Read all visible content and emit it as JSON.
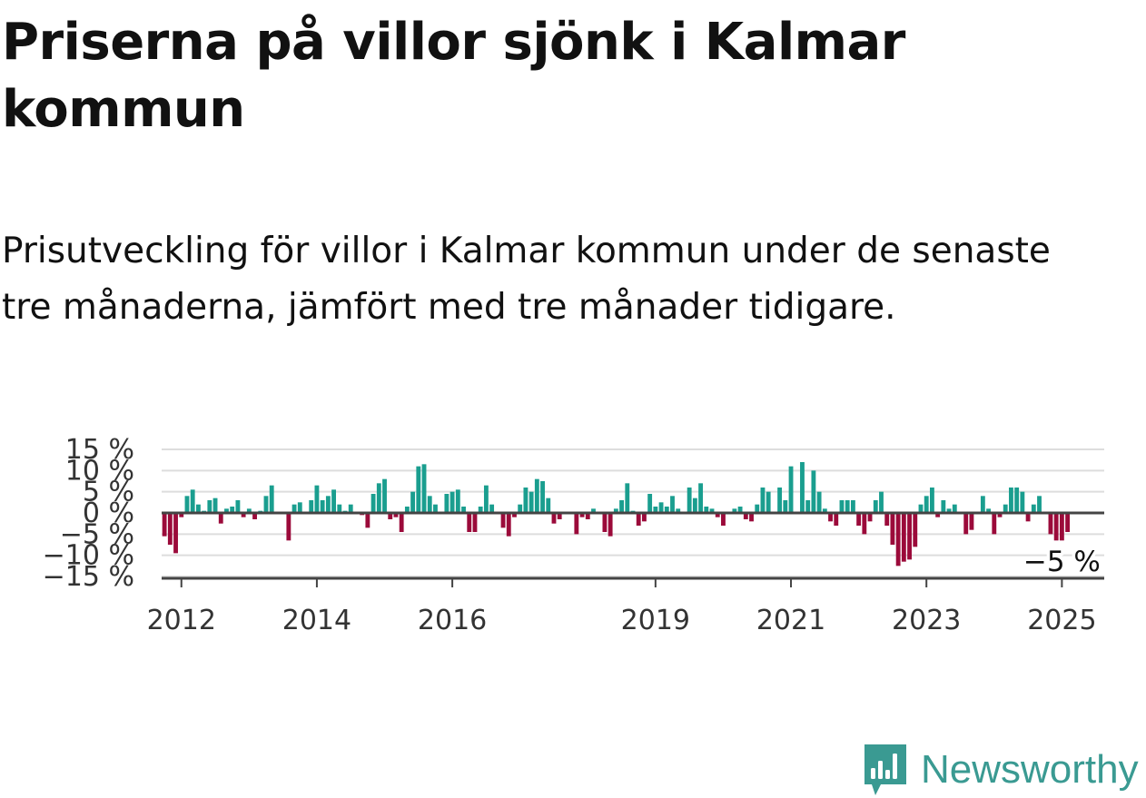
{
  "title": "Priserna på villor sjönk i Kalmar kommun",
  "subtitle": "Prisutveckling för villor i Kalmar kommun under de senaste tre månaderna, jämfört med tre månader tidigare.",
  "brand": {
    "name": "Newsworthy",
    "icon": "newsworthy-logo-icon",
    "color": "#3a9a92"
  },
  "colors": {
    "positive": "#1a9e8f",
    "negative": "#9b0a3a",
    "zero_line": "#444444",
    "grid": "#dddddd"
  },
  "chart_data": {
    "type": "bar",
    "title": "",
    "xlabel": "",
    "ylabel": "",
    "ylim": [
      -15,
      15
    ],
    "y_ticks": [
      {
        "value": 15,
        "label": "15 %"
      },
      {
        "value": 10,
        "label": "10 %"
      },
      {
        "value": 5,
        "label": "5 %"
      },
      {
        "value": 0,
        "label": "0 %"
      },
      {
        "value": -5,
        "label": "−5 %"
      },
      {
        "value": -10,
        "label": "−10 %"
      },
      {
        "value": -15,
        "label": "−15 %"
      }
    ],
    "x_ticks": [
      "2012",
      "2014",
      "2016",
      "2019",
      "2021",
      "2023",
      "2025"
    ],
    "grid": true,
    "x_start": "2011-10",
    "x_end": "2025-08",
    "annotation": {
      "label": "−5 %",
      "value": -5
    },
    "values": [
      -5.5,
      -7.5,
      -9.5,
      -1,
      4,
      5.5,
      2,
      0.5,
      3,
      3.5,
      -2.5,
      1,
      1.5,
      3,
      -1,
      1,
      -1.5,
      0.5,
      4,
      6.5,
      0,
      0,
      -6.5,
      2,
      2.5,
      0,
      3,
      6.5,
      3,
      4,
      5.5,
      2,
      0.5,
      2,
      0,
      -0.5,
      -3.5,
      4.5,
      7,
      8,
      -1.5,
      -1,
      -4.5,
      1.5,
      5,
      11,
      11.5,
      4,
      2,
      0,
      4.5,
      5,
      5.5,
      1.5,
      -4.5,
      -4.5,
      1.5,
      6.5,
      2,
      0,
      -3.5,
      -5.5,
      -1,
      2,
      6,
      5,
      8,
      7.5,
      3.5,
      -2.5,
      -1.5,
      0,
      0,
      -5,
      -1,
      -1.5,
      1,
      0,
      -4.5,
      -5.5,
      1,
      3,
      7,
      0.5,
      -3,
      -2,
      4.5,
      1.5,
      2.5,
      1.5,
      4,
      1,
      0,
      6,
      3.5,
      7,
      1.5,
      1,
      -1,
      -3,
      0,
      1,
      1.5,
      -1.5,
      -2,
      2,
      6,
      5,
      0,
      6,
      3,
      11,
      0,
      12,
      3,
      10,
      5,
      1,
      -2,
      -3,
      3,
      3,
      3,
      -3,
      -5,
      -2,
      3,
      5,
      -3,
      -7.5,
      -12.5,
      -11.5,
      -11,
      -8,
      2,
      4,
      6,
      -1,
      3,
      1,
      2,
      0,
      -5,
      -4,
      0,
      4,
      1,
      -5,
      -1,
      2,
      6,
      6,
      5,
      -2,
      2,
      4,
      0,
      -5,
      -6.5,
      -6.5,
      -4.5
    ]
  }
}
